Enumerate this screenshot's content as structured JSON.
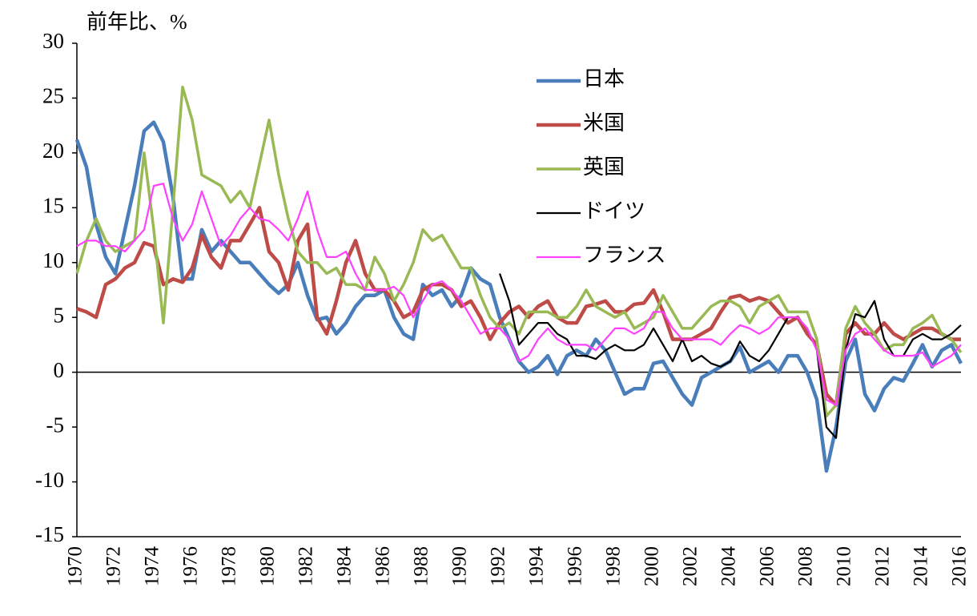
{
  "chart_data": {
    "type": "line",
    "y_label": "前年比、%",
    "x": [
      1970,
      1970.5,
      1971,
      1971.5,
      1972,
      1972.5,
      1973,
      1973.5,
      1974,
      1974.5,
      1975,
      1975.5,
      1976,
      1976.5,
      1977,
      1977.5,
      1978,
      1978.5,
      1979,
      1979.5,
      1980,
      1980.5,
      1981,
      1981.5,
      1982,
      1982.5,
      1983,
      1983.5,
      1984,
      1984.5,
      1985,
      1985.5,
      1986,
      1986.5,
      1987,
      1987.5,
      1988,
      1988.5,
      1989,
      1989.5,
      1990,
      1990.5,
      1991,
      1991.5,
      1992,
      1992.5,
      1993,
      1993.5,
      1994,
      1994.5,
      1995,
      1995.5,
      1996,
      1996.5,
      1997,
      1997.5,
      1998,
      1998.5,
      1999,
      1999.5,
      2000,
      2000.5,
      2001,
      2001.5,
      2002,
      2002.5,
      2003,
      2003.5,
      2004,
      2004.5,
      2005,
      2005.5,
      2006,
      2006.5,
      2007,
      2007.5,
      2008,
      2008.5,
      2009,
      2009.5,
      2010,
      2010.5,
      2011,
      2011.5,
      2012,
      2012.5,
      2013,
      2013.5,
      2014,
      2014.5,
      2015,
      2015.5,
      2016
    ],
    "series": [
      {
        "name": "日本",
        "color": "#4a7ebb",
        "values": [
          21.2,
          18.7,
          13.5,
          10.5,
          9,
          13,
          17,
          22,
          22.8,
          21,
          16,
          8.5,
          8.5,
          13,
          11,
          12,
          11,
          10,
          10,
          9,
          8,
          7.2,
          8,
          10,
          7,
          4.8,
          5,
          3.5,
          4.5,
          6,
          7,
          7,
          7.5,
          5,
          3.5,
          3,
          8,
          7,
          7.5,
          6,
          7,
          9.5,
          8.5,
          8,
          5,
          3,
          1,
          0,
          0.5,
          1.5,
          -0.2,
          1.5,
          2,
          1.5,
          3,
          2,
          0,
          -2,
          -1.5,
          -1.5,
          0.8,
          1,
          -0.5,
          -2,
          -3,
          -0.5,
          0,
          0.5,
          1,
          2.3,
          0,
          0.5,
          1,
          0,
          1.5,
          1.5,
          0,
          -2.5,
          -9,
          -5,
          1,
          3,
          -2,
          -3.5,
          -1.5,
          -0.5,
          -0.8,
          0.8,
          2.5,
          0.5,
          2,
          2.5,
          0.8
        ]
      },
      {
        "name": "米国",
        "color": "#be4b48",
        "values": [
          5.8,
          5.5,
          5,
          8,
          8.5,
          9.5,
          10,
          11.8,
          11.5,
          8,
          8.5,
          8.2,
          9.5,
          12.5,
          10.5,
          9.5,
          12,
          12,
          13.5,
          15,
          11,
          10,
          7.5,
          12,
          13.5,
          5,
          3.5,
          6.5,
          10,
          12,
          9,
          7.5,
          7.5,
          6.5,
          5,
          5.5,
          7.5,
          8,
          8,
          7.5,
          6,
          6.5,
          5,
          3,
          4.5,
          5.5,
          6,
          5,
          6,
          6.5,
          5,
          4.5,
          4.5,
          6,
          6.2,
          6.5,
          5.5,
          5.5,
          6.2,
          6.3,
          7.5,
          5.5,
          3,
          3,
          3,
          3.5,
          4,
          5.5,
          6.8,
          7,
          6.5,
          6.8,
          6.5,
          5.5,
          4.5,
          5,
          3.5,
          2.5,
          -2,
          -3,
          3.5,
          4.5,
          3.5,
          3.5,
          4.5,
          3.5,
          3,
          3.5,
          4,
          4,
          3.5,
          3,
          3
        ]
      },
      {
        "name": "英国",
        "color": "#98b954",
        "values": [
          9,
          12,
          14,
          12,
          11,
          11.5,
          12,
          20,
          13,
          4.5,
          15,
          26,
          23,
          18,
          17.5,
          17,
          15.5,
          16.5,
          15,
          19,
          23,
          18,
          14,
          11,
          10,
          10,
          9,
          9.5,
          8,
          8,
          7.5,
          10.5,
          9,
          6.5,
          8,
          10,
          13,
          12,
          12.5,
          11,
          9.5,
          9.5,
          7,
          5,
          4,
          4.5,
          3.5,
          5.5,
          5.5,
          5.5,
          5,
          5,
          6,
          7.5,
          6,
          5.5,
          5,
          5.5,
          4,
          4.5,
          5,
          7,
          5.5,
          4,
          4,
          5,
          6,
          6.5,
          6.5,
          6,
          4.5,
          6,
          6.5,
          7,
          5.5,
          5.5,
          5.5,
          3,
          -4,
          -3,
          4,
          6,
          4.5,
          3.5,
          2,
          2.5,
          2.5,
          4,
          4.5,
          5.2,
          3.5,
          3,
          1.8
        ]
      },
      {
        "name": "ドイツ",
        "color": "#000000",
        "values": [
          null,
          null,
          null,
          null,
          null,
          null,
          null,
          null,
          null,
          null,
          null,
          null,
          null,
          null,
          null,
          null,
          null,
          null,
          null,
          null,
          null,
          null,
          null,
          null,
          null,
          null,
          null,
          null,
          null,
          null,
          null,
          null,
          null,
          null,
          null,
          null,
          null,
          null,
          null,
          null,
          null,
          null,
          null,
          null,
          9,
          6.5,
          2.5,
          3.5,
          4.5,
          4.5,
          3.5,
          3,
          1.5,
          1.5,
          1.2,
          2,
          2.5,
          2,
          2,
          2.5,
          4,
          2.5,
          1,
          3,
          1,
          1.5,
          0.8,
          0.5,
          1,
          2.8,
          1.5,
          1,
          2,
          3.5,
          5,
          5,
          4,
          2,
          -5,
          -6,
          2,
          5.3,
          5,
          6.5,
          3,
          1.5,
          1.5,
          3,
          3.5,
          3,
          3,
          3.5,
          4.3
        ]
      },
      {
        "name": "フランス",
        "color": "#ff40ff",
        "values": [
          11.5,
          12,
          12,
          11.5,
          11.5,
          11,
          12,
          13,
          17,
          17.2,
          14,
          12,
          13.5,
          16.5,
          14,
          11.5,
          12.5,
          14,
          15,
          14,
          13.8,
          13,
          12,
          14,
          16.5,
          13,
          10.5,
          10.5,
          11,
          9,
          7.5,
          7.5,
          7.5,
          7.8,
          7,
          5,
          6.5,
          8,
          8.3,
          7.5,
          6.5,
          5,
          3.5,
          4,
          4,
          3,
          1,
          1.5,
          3,
          4,
          3,
          2.5,
          2.5,
          2.5,
          2,
          3,
          4,
          4,
          3.5,
          4,
          5.5,
          5.5,
          4,
          3,
          3,
          3,
          3,
          2.5,
          3.5,
          4.3,
          4,
          3.5,
          4,
          5,
          5,
          5,
          4,
          2,
          -2.5,
          -3,
          2,
          3.5,
          4,
          3,
          2,
          1.5,
          1.5,
          1.5,
          1.8,
          0.5,
          1,
          1.5,
          2.5
        ]
      }
    ],
    "xlim": [
      1970,
      2016
    ],
    "xticks": [
      1970,
      1972,
      1974,
      1976,
      1978,
      1980,
      1982,
      1984,
      1986,
      1988,
      1990,
      1992,
      1994,
      1996,
      1998,
      2000,
      2002,
      2004,
      2006,
      2008,
      2010,
      2012,
      2014,
      2016
    ],
    "ylim": [
      -15,
      30
    ],
    "yticks": [
      -15,
      -10,
      -5,
      0,
      5,
      10,
      15,
      20,
      25,
      30
    ]
  }
}
